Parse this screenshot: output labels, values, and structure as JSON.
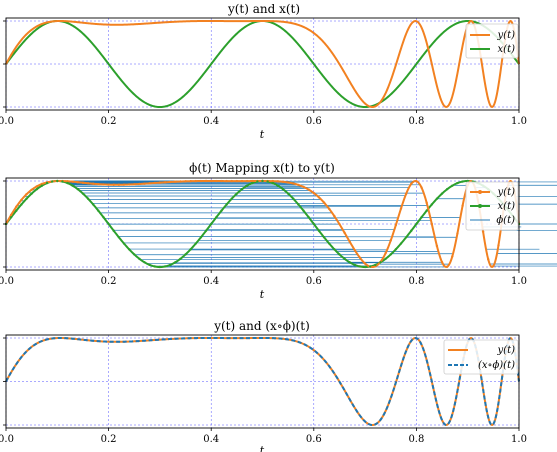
{
  "colors": {
    "y": "#f28121",
    "x": "#2ca02c",
    "phi": "#1f77b4",
    "grid": "#1f1fff"
  },
  "chart_data": [
    {
      "type": "line",
      "title": "y(t) and x(t)",
      "xlabel": "t",
      "xlim": [
        0.0,
        1.0
      ],
      "ylim": [
        -1.0,
        1.0
      ],
      "xticks": [
        "0.0",
        "0.2",
        "0.4",
        "0.6",
        "0.8",
        "1.0"
      ],
      "grid": true,
      "legend_position": "top-right",
      "series": [
        {
          "name": "y(t)",
          "function": "y = sin(pi*t*(1 + 6*(2*t-1)^2))"
        },
        {
          "name": "x(t)",
          "function": "x = sin(5*pi*t)"
        }
      ]
    },
    {
      "type": "line",
      "title": "ϕ(t) Mapping x(t) to y(t)",
      "xlabel": "t",
      "xlim": [
        0.0,
        1.0
      ],
      "ylim": [
        -1.0,
        1.0
      ],
      "xticks": [
        "0.0",
        "0.2",
        "0.4",
        "0.6",
        "0.8",
        "1.0"
      ],
      "grid": true,
      "legend_position": "top-right",
      "series": [
        {
          "name": "y(t)",
          "marker": "dot"
        },
        {
          "name": "x(t)",
          "marker": "dot"
        },
        {
          "name": "ϕ(t)"
        }
      ]
    },
    {
      "type": "line",
      "title": "y(t) and (x∘ϕ)(t)",
      "xlabel": "t",
      "xlim": [
        0.0,
        1.0
      ],
      "ylim": [
        -1.0,
        1.0
      ],
      "xticks": [
        "0.0",
        "0.2",
        "0.4",
        "0.6",
        "0.8",
        "1.0"
      ],
      "grid": true,
      "legend_position": "top-right",
      "series": [
        {
          "name": "y(t)"
        },
        {
          "name": "(x∘ϕ)(t)",
          "style": "dashed"
        }
      ]
    }
  ]
}
